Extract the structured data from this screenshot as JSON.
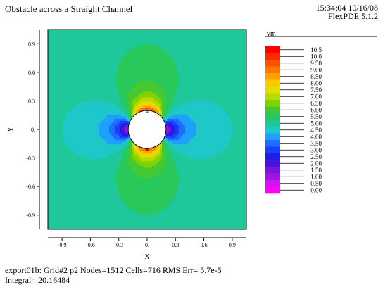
{
  "header": {
    "title": "Obstacle across a Straight Channel",
    "time": "15:34:04 10/16/08",
    "product": "FlexPDE 5.1.2"
  },
  "footer": {
    "line1": "export01b:  Grid#2  p2  Nodes=1512 Cells=716 RMS Err= 5.7e-5",
    "line2": "Integral=  20.16484"
  },
  "chart_data": {
    "type": "heatmap",
    "variable": "vm",
    "xlabel": "X",
    "ylabel": "Y",
    "xlim": [
      -1.05,
      1.05
    ],
    "ylim": [
      -1.05,
      1.05
    ],
    "xticks": [
      -0.9,
      -0.6,
      -0.3,
      0,
      0.3,
      0.6,
      0.9
    ],
    "xtick_labels": [
      "-0.9",
      "-0.6",
      "-0.3",
      "0.",
      "0.3",
      "0.6",
      "0.9"
    ],
    "yticks": [
      0.9,
      0.6,
      0.3,
      0,
      -0.3,
      -0.6,
      -0.9
    ],
    "ytick_labels": [
      "0.9",
      "0.6",
      "0.3",
      "0.",
      "-0.3",
      "-0.6",
      "-0.9"
    ],
    "obstacle_radius": 0.2,
    "legend_position": "right",
    "legend_levels": [
      10.5,
      10.0,
      9.5,
      9.0,
      8.5,
      8.0,
      7.5,
      7.0,
      6.5,
      6.0,
      5.5,
      5.0,
      4.5,
      4.0,
      3.5,
      3.0,
      2.5,
      2.0,
      1.5,
      1.0,
      0.5,
      0.0
    ],
    "legend_labels": [
      "10.5",
      "10.0",
      "9.50",
      "9.00",
      "8.50",
      "8.00",
      "7.50",
      "7.00",
      "6.50",
      "6.00",
      "5.50",
      "5.00",
      "4.50",
      "4.00",
      "3.50",
      "3.00",
      "2.50",
      "2.00",
      "1.50",
      "1.00",
      "0.50",
      "0.00"
    ],
    "legend_colors": [
      "#ff0000",
      "#ff2800",
      "#ff5000",
      "#ff7800",
      "#ffa000",
      "#ffc800",
      "#e6dc00",
      "#b4dc00",
      "#82d200",
      "#46c832",
      "#28c85a",
      "#1ec89b",
      "#1ec8c8",
      "#1ea0ff",
      "#1e6eff",
      "#1e3cff",
      "#1e1ee6",
      "#4614dc",
      "#7814dc",
      "#a014e6",
      "#d214f0",
      "#ff00ff"
    ],
    "farfield_value": 5.0,
    "annotations": [
      {
        "x": 0,
        "y": 0.2,
        "text": "a"
      },
      {
        "x": 0,
        "y": -0.2,
        "text": "a"
      }
    ]
  }
}
